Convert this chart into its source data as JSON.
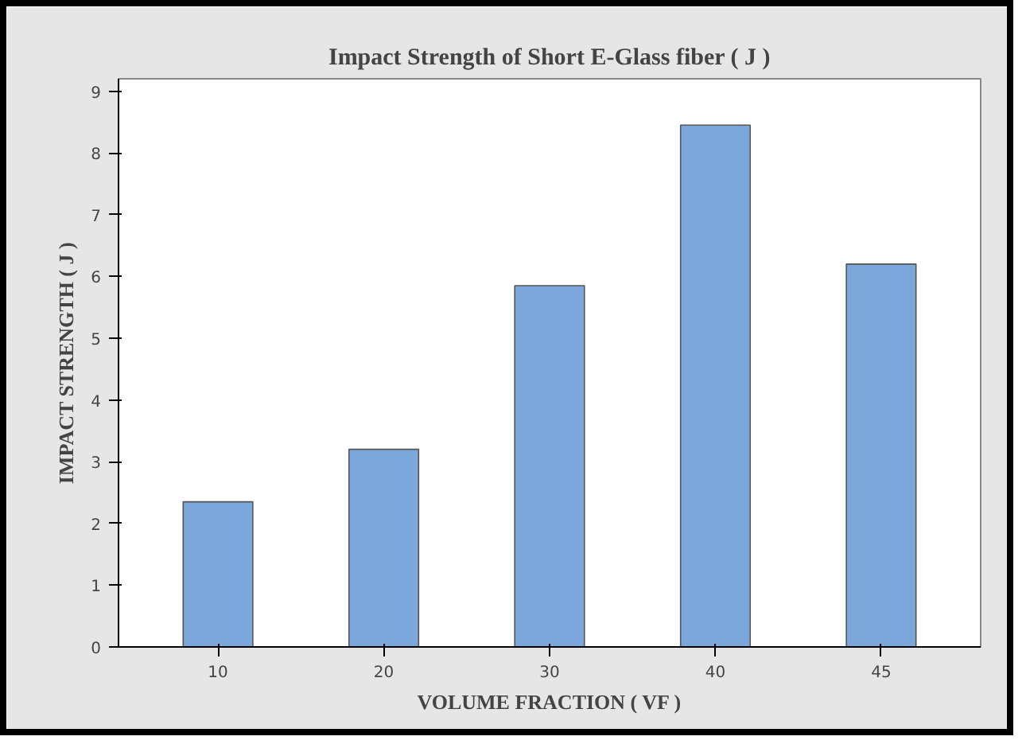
{
  "chart_data": {
    "type": "bar",
    "title": "Impact Strength of Short E-Glass fiber ( J )",
    "xlabel": "VOLUME FRACTION ( VF )",
    "ylabel": "IMPACT STRENGTH ( J )",
    "categories": [
      "10",
      "20",
      "30",
      "40",
      "45"
    ],
    "values": [
      2.35,
      3.2,
      5.85,
      8.45,
      6.2
    ],
    "color": "#7ba7da",
    "ylim": [
      0,
      9.2
    ],
    "yticks": [
      0,
      1,
      2,
      3,
      4,
      5,
      6,
      7,
      8,
      9
    ],
    "grid": false
  }
}
